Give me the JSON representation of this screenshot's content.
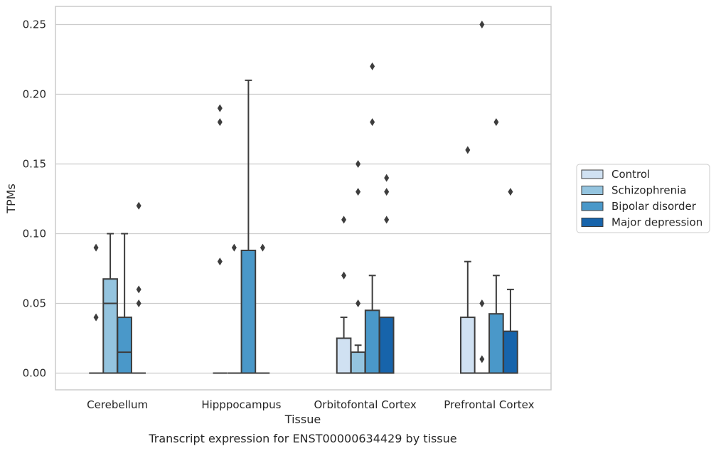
{
  "chart_data": {
    "type": "box",
    "title": "",
    "caption": "Transcript expression for ENST00000634429 by tissue",
    "xlabel": "Tissue",
    "ylabel": "TPMs",
    "ylim": [
      -0.012,
      0.263
    ],
    "yticks": [
      0.0,
      0.05,
      0.1,
      0.15,
      0.2,
      0.25
    ],
    "ytick_labels": [
      "0.00",
      "0.05",
      "0.10",
      "0.15",
      "0.20",
      "0.25"
    ],
    "grid": true,
    "legend_position": "right",
    "categories": [
      "Cerebellum",
      "Hipppocampus",
      "Orbitofontal Cortex",
      "Prefrontal Cortex"
    ],
    "series": [
      {
        "name": "Control",
        "color": "#d0e1f2",
        "boxes": [
          {
            "q1": 0.0,
            "median": 0.0,
            "q3": 0.0,
            "whislo": 0.0,
            "whishi": 0.0,
            "fliers": [
              0.04,
              0.09
            ]
          },
          {
            "q1": 0.0,
            "median": 0.0,
            "q3": 0.0,
            "whislo": 0.0,
            "whishi": 0.0,
            "fliers": [
              0.08,
              0.18,
              0.19
            ]
          },
          {
            "q1": 0.0,
            "median": 0.0,
            "q3": 0.025,
            "whislo": 0.0,
            "whishi": 0.04,
            "fliers": [
              0.07,
              0.11
            ]
          },
          {
            "q1": 0.0,
            "median": 0.0,
            "q3": 0.04,
            "whislo": 0.0,
            "whishi": 0.08,
            "fliers": [
              0.16
            ]
          }
        ]
      },
      {
        "name": "Schizophrenia",
        "color": "#94c4df",
        "boxes": [
          {
            "q1": 0.0,
            "median": 0.05,
            "q3": 0.0675,
            "whislo": 0.0,
            "whishi": 0.1,
            "fliers": []
          },
          {
            "q1": 0.0,
            "median": 0.0,
            "q3": 0.0,
            "whislo": 0.0,
            "whishi": 0.0,
            "fliers": [
              0.09
            ]
          },
          {
            "q1": 0.0,
            "median": 0.0,
            "q3": 0.015,
            "whislo": 0.0,
            "whishi": 0.02,
            "fliers": [
              0.05,
              0.13,
              0.15
            ]
          },
          {
            "q1": 0.0,
            "median": 0.0,
            "q3": 0.0,
            "whislo": 0.0,
            "whishi": 0.0,
            "fliers": [
              0.01,
              0.05,
              0.25
            ]
          }
        ]
      },
      {
        "name": "Bipolar disorder",
        "color": "#4a98c9",
        "boxes": [
          {
            "q1": 0.0,
            "median": 0.015,
            "q3": 0.04,
            "whislo": 0.0,
            "whishi": 0.1,
            "fliers": []
          },
          {
            "q1": 0.0,
            "median": 0.0,
            "q3": 0.088,
            "whislo": 0.0,
            "whishi": 0.21,
            "fliers": []
          },
          {
            "q1": 0.0,
            "median": 0.0,
            "q3": 0.045,
            "whislo": 0.0,
            "whishi": 0.07,
            "fliers": [
              0.18,
              0.22
            ]
          },
          {
            "q1": 0.0,
            "median": 0.0,
            "q3": 0.0425,
            "whislo": 0.0,
            "whishi": 0.07,
            "fliers": [
              0.18
            ]
          }
        ]
      },
      {
        "name": "Major depression",
        "color": "#1764ab",
        "boxes": [
          {
            "q1": 0.0,
            "median": 0.0,
            "q3": 0.0,
            "whislo": 0.0,
            "whishi": 0.0,
            "fliers": [
              0.05,
              0.06,
              0.12
            ]
          },
          {
            "q1": 0.0,
            "median": 0.0,
            "q3": 0.0,
            "whislo": 0.0,
            "whishi": 0.0,
            "fliers": [
              0.09
            ]
          },
          {
            "q1": 0.0,
            "median": 0.0,
            "q3": 0.04,
            "whislo": 0.0,
            "whishi": 0.04,
            "fliers": [
              0.11,
              0.13,
              0.14
            ]
          },
          {
            "q1": 0.0,
            "median": 0.0,
            "q3": 0.03,
            "whislo": 0.0,
            "whishi": 0.06,
            "fliers": [
              0.13
            ]
          }
        ]
      }
    ]
  }
}
